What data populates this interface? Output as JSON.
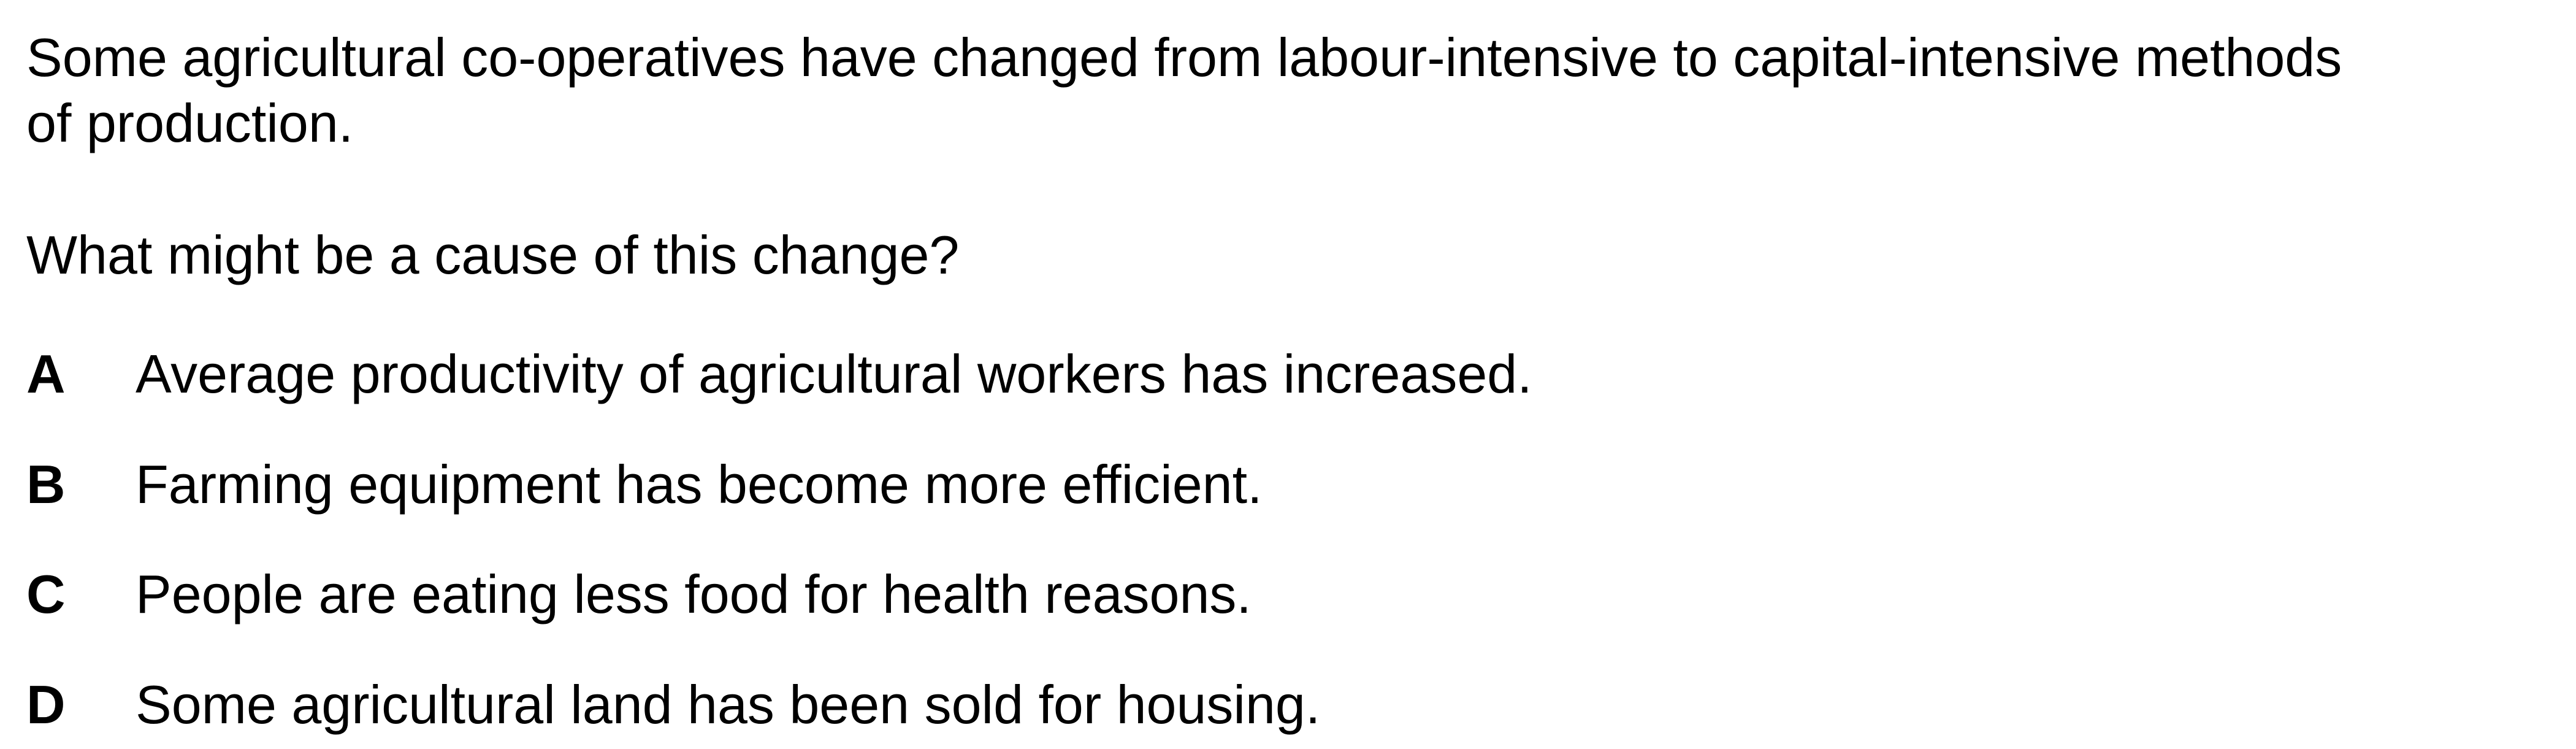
{
  "question": {
    "stem_line_1": "Some agricultural co-operatives have changed from labour-intensive to capital-intensive methods",
    "stem_line_2": "of production.",
    "prompt": "What might be a cause of this change?"
  },
  "options": [
    {
      "letter": "A",
      "text": "Average productivity of agricultural workers has increased."
    },
    {
      "letter": "B",
      "text": "Farming equipment has become more efficient."
    },
    {
      "letter": "C",
      "text": "People are eating less food for health reasons."
    },
    {
      "letter": "D",
      "text": "Some agricultural land has been sold for housing."
    }
  ]
}
